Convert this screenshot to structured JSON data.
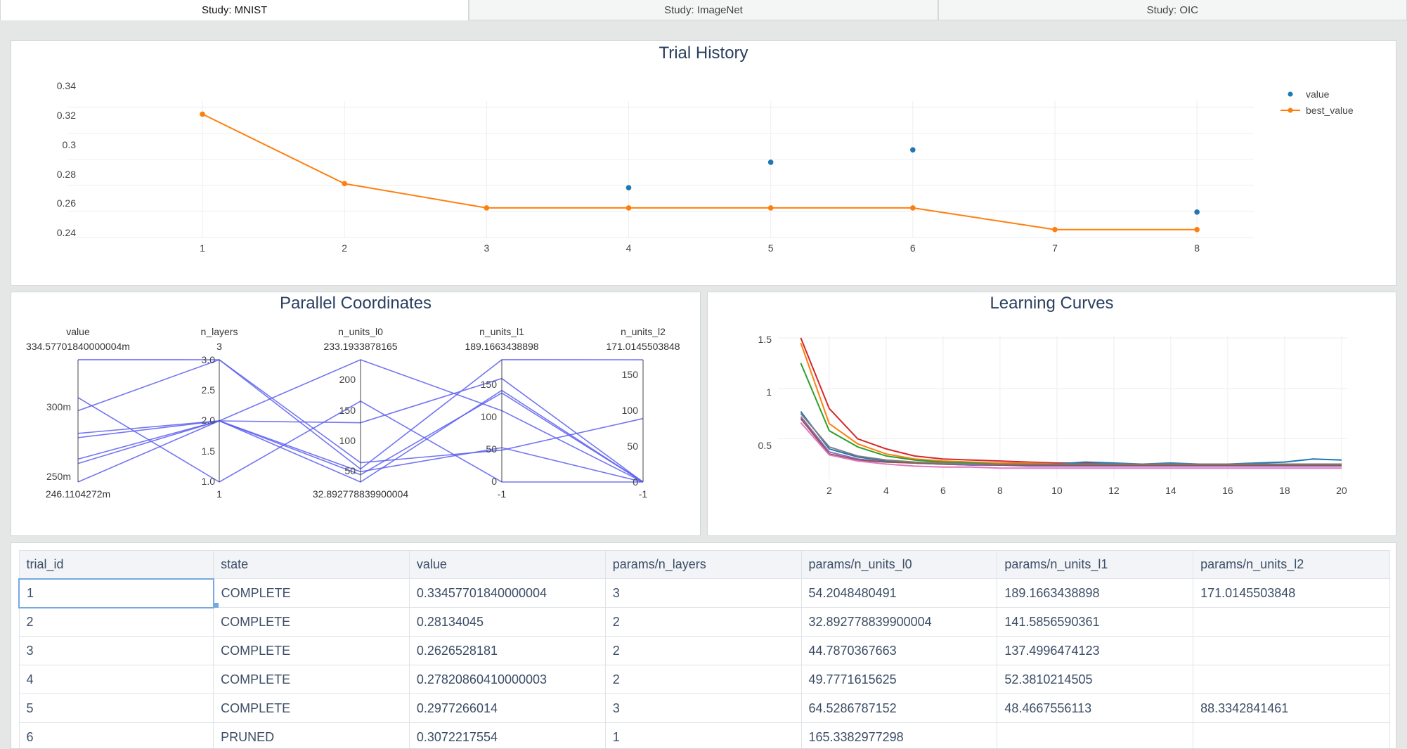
{
  "tabs": [
    "Study: MNIST",
    "Study: ImageNet",
    "Study: OIC"
  ],
  "trial_history": {
    "title": "Trial History",
    "legend": [
      "value",
      "best_value"
    ],
    "colors": {
      "value": "#1f77b4",
      "best_value": "#ff7f0e"
    },
    "x_ticks": [
      "1",
      "2",
      "3",
      "4",
      "5",
      "6",
      "7",
      "8"
    ],
    "y_ticks": [
      "0.34",
      "0.32",
      "0.3",
      "0.28",
      "0.26",
      "0.24"
    ]
  },
  "parallel": {
    "title": "Parallel Coordinates",
    "axes": [
      {
        "name": "value",
        "max_label": "334.57701840000004m",
        "min_label": "246.1104272m",
        "ticks": [
          "300m",
          "250m"
        ]
      },
      {
        "name": "n_layers",
        "max_label": "3",
        "min_label": "1",
        "ticks": [
          "3.0",
          "2.5",
          "2.0",
          "1.5",
          "1.0"
        ]
      },
      {
        "name": "n_units_l0",
        "max_label": "233.1933878165",
        "min_label": "32.892778839900004",
        "ticks": [
          "200",
          "150",
          "100",
          "50"
        ]
      },
      {
        "name": "n_units_l1",
        "max_label": "189.1663438898",
        "min_label": "-1",
        "ticks": [
          "150",
          "100",
          "50",
          "0"
        ]
      },
      {
        "name": "n_units_l2",
        "max_label": "171.0145503848",
        "min_label": "-1",
        "ticks": [
          "150",
          "100",
          "50",
          "0"
        ]
      }
    ]
  },
  "learning": {
    "title": "Learning Curves",
    "x_ticks": [
      "2",
      "4",
      "6",
      "8",
      "10",
      "12",
      "14",
      "16",
      "18",
      "20"
    ],
    "y_ticks": [
      "1.5",
      "1",
      "0.5"
    ]
  },
  "table": {
    "columns": [
      "trial_id",
      "state",
      "value",
      "params/n_layers",
      "params/n_units_l0",
      "params/n_units_l1",
      "params/n_units_l2"
    ],
    "rows": [
      [
        "1",
        "COMPLETE",
        "0.33457701840000004",
        "3",
        "54.2048480491",
        "189.1663438898",
        "171.0145503848"
      ],
      [
        "2",
        "COMPLETE",
        "0.28134045",
        "2",
        "32.892778839900004",
        "141.5856590361",
        ""
      ],
      [
        "3",
        "COMPLETE",
        "0.2626528181",
        "2",
        "44.7870367663",
        "137.4996474123",
        ""
      ],
      [
        "4",
        "COMPLETE",
        "0.27820860410000003",
        "2",
        "49.7771615625",
        "52.3810214505",
        ""
      ],
      [
        "5",
        "COMPLETE",
        "0.2977266014",
        "3",
        "64.5286787152",
        "48.4667556113",
        "88.3342841461"
      ],
      [
        "6",
        "PRUNED",
        "0.3072217554",
        "1",
        "165.3382977298",
        "",
        ""
      ]
    ]
  },
  "chart_data": [
    {
      "type": "line",
      "title": "Trial History",
      "x": [
        1,
        2,
        3,
        4,
        5,
        6,
        7,
        8
      ],
      "series": [
        {
          "name": "value",
          "mode": "markers",
          "x": [
            1,
            2,
            3,
            4,
            5,
            6,
            7,
            8
          ],
          "values": [
            0.3346,
            0.2813,
            0.2627,
            0.2782,
            0.2977,
            0.3072,
            0.2461,
            0.2595
          ]
        },
        {
          "name": "best_value",
          "mode": "lines+markers",
          "x": [
            1,
            2,
            3,
            4,
            5,
            6,
            7,
            8
          ],
          "values": [
            0.3346,
            0.2813,
            0.2627,
            0.2627,
            0.2627,
            0.2627,
            0.2461,
            0.2461
          ]
        }
      ],
      "xlim": [
        0.05,
        8.4
      ],
      "ylim": [
        0.2395,
        0.3445
      ],
      "grid": true,
      "legend": "top-right"
    },
    {
      "type": "parallel",
      "title": "Parallel Coordinates",
      "dimensions": [
        "value",
        "n_layers",
        "n_units_l0",
        "n_units_l1",
        "n_units_l2"
      ],
      "ranges": [
        [
          0.2461104272,
          0.3345770184
        ],
        [
          1,
          3
        ],
        [
          32.8927788399,
          233.1933878165
        ],
        [
          -1,
          189.1663438898
        ],
        [
          -1,
          171.0145503848
        ]
      ],
      "lines": [
        [
          0.3346,
          3,
          54.2,
          189.2,
          171.0
        ],
        [
          0.2813,
          2,
          32.9,
          141.6,
          -1
        ],
        [
          0.2627,
          2,
          44.8,
          137.5,
          -1
        ],
        [
          0.2782,
          2,
          49.8,
          52.4,
          -1
        ],
        [
          0.2977,
          3,
          64.5,
          48.5,
          88.3
        ],
        [
          0.3072,
          1,
          165.3,
          -1,
          -1
        ],
        [
          0.2461,
          2,
          233.2,
          110.0,
          -1
        ],
        [
          0.2595,
          2,
          130.0,
          160.0,
          -1
        ]
      ],
      "color": "#5a5ef0"
    },
    {
      "type": "line",
      "title": "Learning Curves",
      "x": [
        1,
        2,
        3,
        4,
        5,
        6,
        7,
        8,
        9,
        10,
        11,
        12,
        13,
        14,
        15,
        16,
        17,
        18,
        19,
        20
      ],
      "xlim": [
        0.2,
        20.2
      ],
      "ylim": [
        0.1,
        1.52
      ],
      "grid": true,
      "series": [
        {
          "color": "#d62728",
          "values": [
            1.5,
            0.8,
            0.5,
            0.4,
            0.33,
            0.3,
            0.29,
            0.28,
            0.27,
            0.26,
            0.26,
            0.25,
            0.25,
            0.25,
            0.25,
            0.25,
            0.25,
            0.25,
            0.25,
            0.25
          ]
        },
        {
          "color": "#ff7f0e",
          "values": [
            1.45,
            0.65,
            0.45,
            0.35,
            0.3,
            0.28,
            0.27,
            0.26,
            0.26,
            0.25,
            0.25,
            0.25,
            0.25,
            0.25,
            0.25,
            0.25,
            0.25,
            0.25,
            0.25,
            0.25
          ]
        },
        {
          "color": "#2ca02c",
          "values": [
            1.25,
            0.58,
            0.42,
            0.33,
            0.29,
            0.27,
            0.26,
            0.25,
            0.25,
            0.24,
            0.24,
            0.24,
            0.24,
            0.24,
            0.24,
            0.24,
            0.24,
            0.24,
            0.24,
            0.24
          ]
        },
        {
          "color": "#1f77b4",
          "values": [
            0.77,
            0.4,
            0.32,
            0.28,
            0.26,
            0.25,
            0.24,
            0.24,
            0.24,
            0.25,
            0.27,
            0.26,
            0.25,
            0.26,
            0.25,
            0.25,
            0.26,
            0.27,
            0.3,
            0.29
          ]
        },
        {
          "color": "#9467bd",
          "values": [
            0.72,
            0.37,
            0.3,
            0.27,
            0.26,
            0.25,
            0.24,
            0.24,
            0.23,
            0.23,
            0.23,
            0.23,
            0.23,
            0.23,
            0.23,
            0.23,
            0.23,
            0.23,
            0.23,
            0.23
          ]
        },
        {
          "color": "#8c564b",
          "values": [
            0.7,
            0.35,
            0.29,
            0.27,
            0.26,
            0.25,
            0.25,
            0.24,
            0.24,
            0.24,
            0.24,
            0.24,
            0.24,
            0.24,
            0.24,
            0.24,
            0.24,
            0.24,
            0.24,
            0.24
          ]
        },
        {
          "color": "#e377c2",
          "values": [
            0.66,
            0.34,
            0.28,
            0.25,
            0.23,
            0.22,
            0.22,
            0.21,
            0.21,
            0.21,
            0.21,
            0.21,
            0.21,
            0.21,
            0.21,
            0.21,
            0.21,
            0.21,
            0.21,
            0.21
          ]
        },
        {
          "color": "#7f7f7f",
          "values": [
            0.75,
            0.42,
            0.33,
            0.29,
            0.27,
            0.26,
            0.25,
            0.25,
            0.25,
            0.25,
            0.25,
            0.25,
            0.25,
            0.25,
            0.25,
            0.25,
            0.25,
            0.25,
            0.25,
            0.25
          ]
        }
      ]
    }
  ]
}
